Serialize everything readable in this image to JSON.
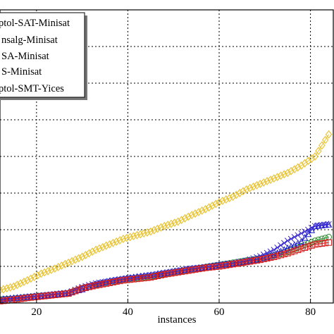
{
  "chart_data": {
    "type": "scatter",
    "title": "",
    "xlabel": "instances",
    "ylabel": "",
    "xlim": [
      12,
      85
    ],
    "ylim": [
      0,
      800
    ],
    "grid": true,
    "grid_style": "dotted",
    "legend_position": "top-left",
    "x_ticks": [
      "20",
      "40",
      "60",
      "80"
    ],
    "series": [
      {
        "name": "...ptol-SAT-Minisat",
        "color": "#2e8b2e",
        "marker": "circle",
        "x": [
          12,
          15,
          18,
          21,
          24,
          27,
          30,
          33,
          36,
          39,
          42,
          45,
          48,
          51,
          54,
          57,
          60,
          63,
          66,
          69,
          72,
          75,
          78,
          81,
          84
        ],
        "y": [
          10,
          12,
          16,
          20,
          22,
          26,
          40,
          50,
          58,
          64,
          68,
          72,
          80,
          86,
          92,
          98,
          104,
          110,
          116,
          122,
          130,
          140,
          155,
          170,
          180
        ]
      },
      {
        "name": "...nsalg-Minisat",
        "color": "#1a1acc",
        "marker": "triangle",
        "x": [
          12,
          15,
          18,
          21,
          24,
          27,
          30,
          33,
          36,
          39,
          42,
          45,
          48,
          51,
          54,
          57,
          60,
          63,
          66,
          69,
          72,
          75,
          78,
          81,
          84
        ],
        "y": [
          10,
          14,
          17,
          20,
          24,
          28,
          38,
          52,
          60,
          66,
          72,
          76,
          82,
          88,
          94,
          98,
          104,
          108,
          114,
          120,
          132,
          150,
          168,
          210,
          215
        ]
      },
      {
        "name": "...SA-Minisat",
        "color": "#e8c53a",
        "marker": "diamond",
        "x": [
          12,
          15,
          18,
          21,
          24,
          27,
          30,
          33,
          36,
          39,
          42,
          45,
          48,
          51,
          54,
          57,
          60,
          63,
          66,
          69,
          72,
          75,
          78,
          81,
          84
        ],
        "y": [
          35,
          45,
          62,
          80,
          94,
          110,
          126,
          145,
          160,
          175,
          185,
          195,
          210,
          222,
          240,
          256,
          275,
          290,
          310,
          325,
          340,
          355,
          375,
          400,
          460
        ]
      },
      {
        "name": "...S-Minisat",
        "color": "#3b2bd1",
        "marker": "x",
        "x": [
          12,
          15,
          18,
          21,
          24,
          27,
          30,
          33,
          36,
          39,
          42,
          45,
          48,
          51,
          54,
          57,
          60,
          63,
          66,
          69,
          72,
          75,
          78,
          81,
          84
        ],
        "y": [
          8,
          12,
          16,
          20,
          24,
          28,
          44,
          54,
          60,
          66,
          70,
          76,
          82,
          88,
          94,
          98,
          104,
          108,
          116,
          128,
          145,
          170,
          190,
          210,
          215
        ]
      },
      {
        "name": "...ptol-SMT-Yices",
        "color": "#d22020",
        "marker": "square",
        "x": [
          12,
          15,
          18,
          21,
          24,
          27,
          30,
          33,
          36,
          39,
          42,
          45,
          48,
          51,
          54,
          57,
          60,
          63,
          66,
          69,
          72,
          75,
          78,
          81,
          84
        ],
        "y": [
          5,
          9,
          14,
          18,
          22,
          26,
          40,
          48,
          55,
          62,
          66,
          70,
          78,
          84,
          90,
          96,
          100,
          106,
          112,
          118,
          126,
          136,
          148,
          160,
          165
        ]
      }
    ]
  },
  "legend": {
    "entries": [
      "ptol-SAT-Minisat",
      "nsalg-Minisat",
      "SA-Minisat",
      "S-Minisat",
      "ptol-SMT-Yices"
    ]
  }
}
